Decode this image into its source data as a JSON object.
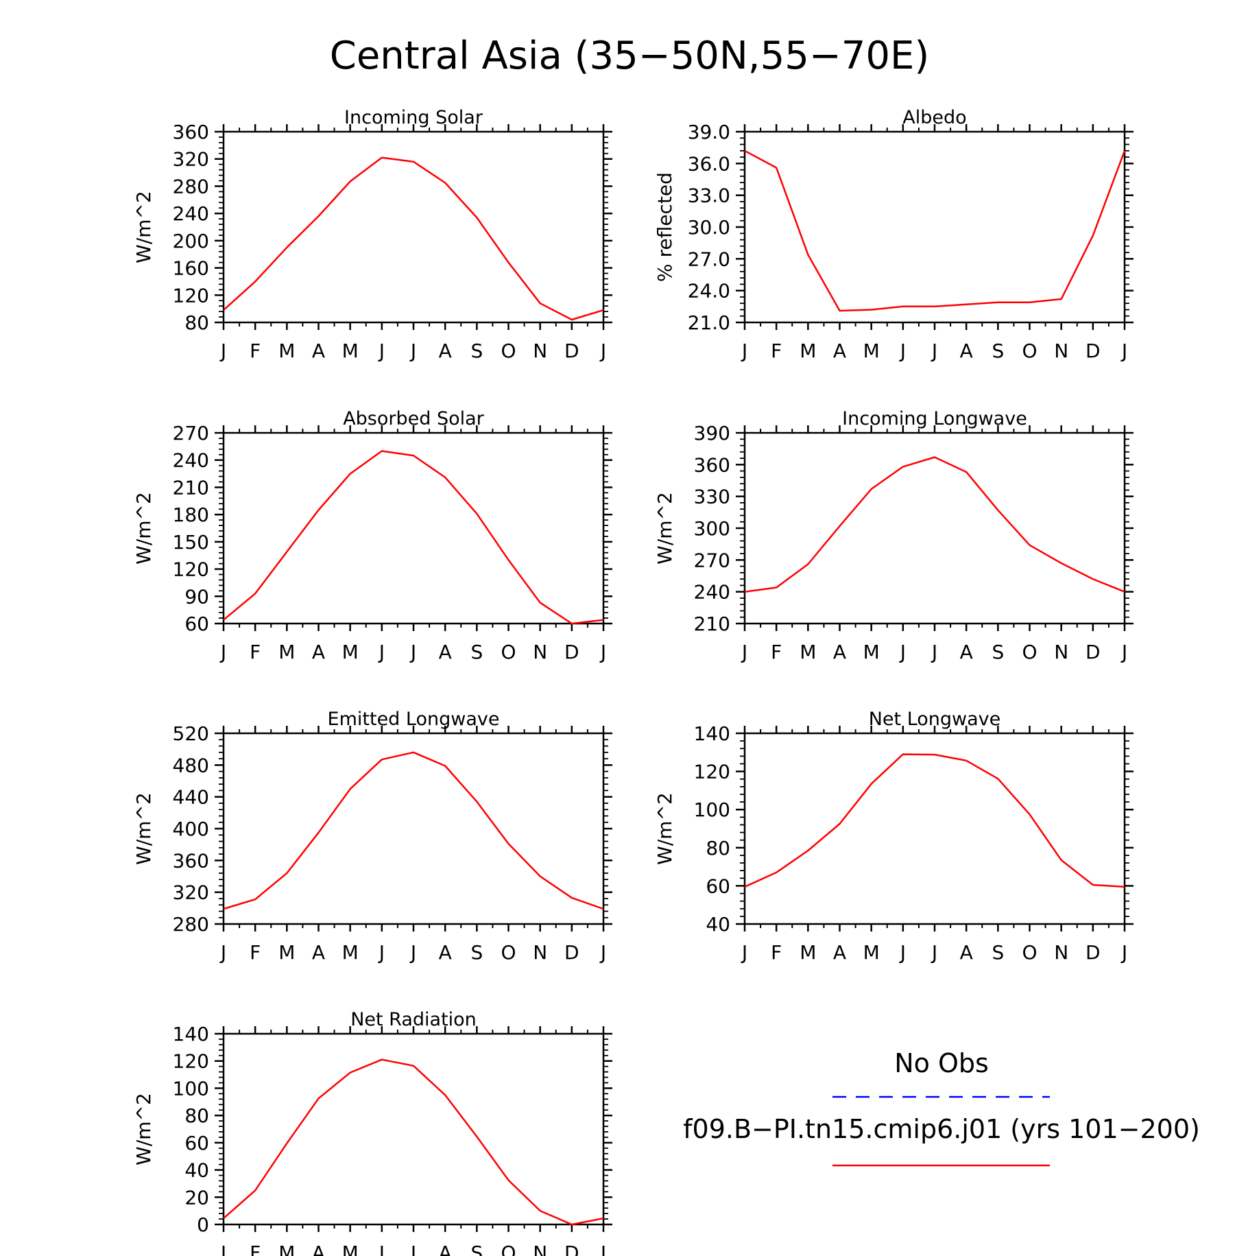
{
  "title": "Central Asia (35−50N,55−70E)",
  "colors": {
    "model_line": "#ff0000",
    "obs_line": "#0000ff",
    "axis": "#000000"
  },
  "legend": {
    "obs_label": "No Obs",
    "model_label": "f09.B−PI.tn15.cmip6.j01 (yrs 101−200)"
  },
  "chart_data": [
    {
      "type": "line",
      "title": "Incoming Solar",
      "ylabel": "W/m^2",
      "categories": [
        "J",
        "F",
        "M",
        "A",
        "M",
        "J",
        "J",
        "A",
        "S",
        "O",
        "N",
        "D",
        "J"
      ],
      "ylim": [
        80,
        360
      ],
      "yticks": [
        "80",
        "120",
        "160",
        "200",
        "240",
        "280",
        "320",
        "360"
      ],
      "series": [
        {
          "values": [
            98,
            140,
            190,
            236,
            287,
            322,
            316,
            285,
            234,
            168,
            108,
            84,
            98
          ]
        }
      ]
    },
    {
      "type": "line",
      "title": "Albedo",
      "ylabel": "% reflected",
      "categories": [
        "J",
        "F",
        "M",
        "A",
        "M",
        "J",
        "J",
        "A",
        "S",
        "O",
        "N",
        "D",
        "J"
      ],
      "ylim": [
        21.0,
        39.0
      ],
      "yticks": [
        "21.0",
        "24.0",
        "27.0",
        "30.0",
        "33.0",
        "36.0",
        "39.0"
      ],
      "series": [
        {
          "values": [
            37.2,
            35.6,
            27.4,
            22.1,
            22.2,
            22.5,
            22.5,
            22.7,
            22.9,
            22.9,
            23.2,
            29.2,
            37.2
          ]
        }
      ]
    },
    {
      "type": "line",
      "title": "Absorbed Solar",
      "ylabel": "W/m^2",
      "categories": [
        "J",
        "F",
        "M",
        "A",
        "M",
        "J",
        "J",
        "A",
        "S",
        "O",
        "N",
        "D",
        "J"
      ],
      "ylim": [
        60,
        270
      ],
      "yticks": [
        "60",
        "90",
        "120",
        "150",
        "180",
        "210",
        "240",
        "270"
      ],
      "series": [
        {
          "values": [
            64,
            93,
            139,
            185,
            225,
            250,
            245,
            221,
            181,
            130,
            83,
            60,
            64
          ]
        }
      ]
    },
    {
      "type": "line",
      "title": "Incoming Longwave",
      "ylabel": "W/m^2",
      "categories": [
        "J",
        "F",
        "M",
        "A",
        "M",
        "J",
        "J",
        "A",
        "S",
        "O",
        "N",
        "D",
        "J"
      ],
      "ylim": [
        210,
        390
      ],
      "yticks": [
        "210",
        "240",
        "270",
        "300",
        "330",
        "360",
        "390"
      ],
      "series": [
        {
          "values": [
            240,
            244,
            266,
            302,
            337,
            358,
            367,
            353,
            317,
            284,
            267,
            252,
            240
          ]
        }
      ]
    },
    {
      "type": "line",
      "title": "Emitted Longwave",
      "ylabel": "W/m^2",
      "categories": [
        "J",
        "F",
        "M",
        "A",
        "M",
        "J",
        "J",
        "A",
        "S",
        "O",
        "N",
        "D",
        "J"
      ],
      "ylim": [
        280,
        520
      ],
      "yticks": [
        "280",
        "320",
        "360",
        "400",
        "440",
        "480",
        "520"
      ],
      "series": [
        {
          "values": [
            299,
            311,
            344,
            395,
            450,
            487,
            496,
            479,
            434,
            381,
            340,
            313,
            299
          ]
        }
      ]
    },
    {
      "type": "line",
      "title": "Net Longwave",
      "ylabel": "W/m^2",
      "categories": [
        "J",
        "F",
        "M",
        "A",
        "M",
        "J",
        "J",
        "A",
        "S",
        "O",
        "N",
        "D",
        "J"
      ],
      "ylim": [
        40,
        140
      ],
      "yticks": [
        "40",
        "60",
        "80",
        "100",
        "120",
        "140"
      ],
      "series": [
        {
          "values": [
            59.5,
            67,
            78.5,
            92.5,
            113.5,
            129,
            128.8,
            125.7,
            116.2,
            97.5,
            73.5,
            60.5,
            59.5
          ]
        }
      ]
    },
    {
      "type": "line",
      "title": "Net Radiation",
      "ylabel": "W/m^2",
      "categories": [
        "J",
        "F",
        "M",
        "A",
        "M",
        "J",
        "J",
        "A",
        "S",
        "O",
        "N",
        "D",
        "J"
      ],
      "ylim": [
        0,
        140
      ],
      "yticks": [
        "0",
        "20",
        "40",
        "60",
        "80",
        "100",
        "120",
        "140"
      ],
      "series": [
        {
          "values": [
            4.5,
            25,
            59.5,
            92.5,
            111.5,
            121,
            116.5,
            95,
            64.5,
            32.5,
            10,
            0,
            4.5
          ]
        }
      ]
    }
  ]
}
